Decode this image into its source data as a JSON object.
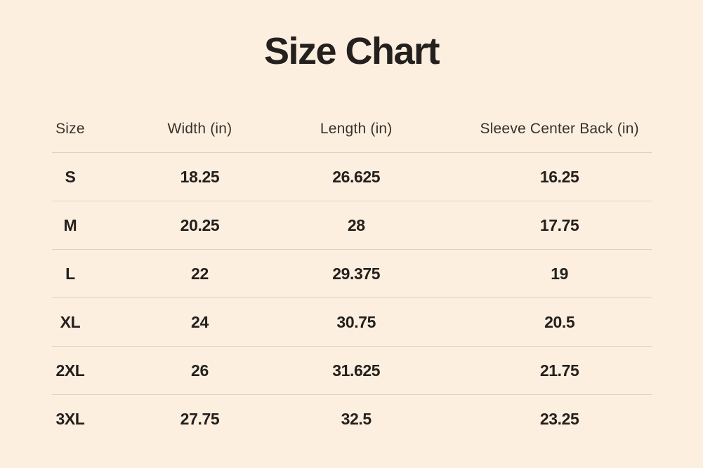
{
  "title": "Size Chart",
  "colors": {
    "background": "#fcefe0",
    "text": "#24201d",
    "header_text": "#36322c",
    "divider": "#d8d1c3"
  },
  "chart_data": {
    "type": "table",
    "title": "Size Chart",
    "columns": [
      "Size",
      "Width (in)",
      "Length (in)",
      "Sleeve Center Back (in)"
    ],
    "rows": [
      {
        "size": "S",
        "width": "18.25",
        "length": "26.625",
        "sleeve": "16.25"
      },
      {
        "size": "M",
        "width": "20.25",
        "length": "28",
        "sleeve": "17.75"
      },
      {
        "size": "L",
        "width": "22",
        "length": "29.375",
        "sleeve": "19"
      },
      {
        "size": "XL",
        "width": "24",
        "length": "30.75",
        "sleeve": "20.5"
      },
      {
        "size": "2XL",
        "width": "26",
        "length": "31.625",
        "sleeve": "21.75"
      },
      {
        "size": "3XL",
        "width": "27.75",
        "length": "32.5",
        "sleeve": "23.25"
      }
    ]
  }
}
